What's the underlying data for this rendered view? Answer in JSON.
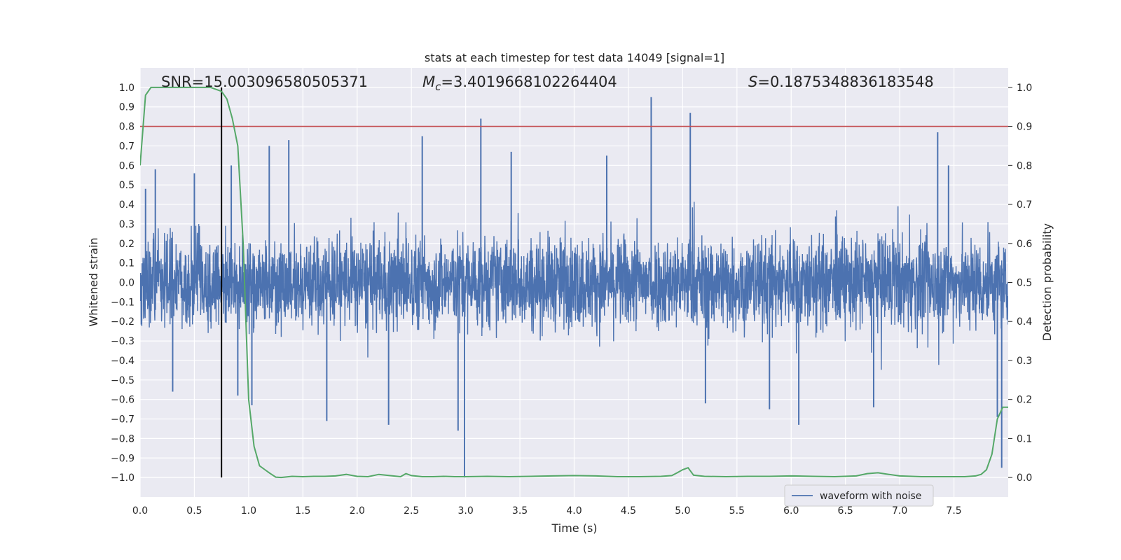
{
  "chart_data": {
    "type": "line",
    "title": "stats at each timestep for test data 14049 [signal=1]",
    "xlabel": "Time (s)",
    "ylabel": "Whitened strain",
    "y2label": "Detection probability",
    "xlim": [
      0.0,
      8.0
    ],
    "ylim": [
      -1.1,
      1.1
    ],
    "y2lim": [
      -0.05,
      1.05
    ],
    "xticks": [
      "0.0",
      "0.5",
      "1.0",
      "1.5",
      "2.0",
      "2.5",
      "3.0",
      "3.5",
      "4.0",
      "4.5",
      "5.0",
      "5.5",
      "6.0",
      "6.5",
      "7.0",
      "7.5"
    ],
    "yticks": [
      "1.0",
      "0.9",
      "0.8",
      "0.7",
      "0.6",
      "0.5",
      "0.4",
      "0.3",
      "0.2",
      "0.1",
      "0.0",
      "−0.1",
      "−0.2",
      "−0.3",
      "−0.4",
      "−0.5",
      "−0.6",
      "−0.7",
      "−0.8",
      "−0.9",
      "−1.0"
    ],
    "y2ticks": [
      "1.0",
      "0.9",
      "0.8",
      "0.7",
      "0.6",
      "0.5",
      "0.4",
      "0.3",
      "0.2",
      "0.1",
      "0.0"
    ],
    "grid": true,
    "legend_position": "lower-right",
    "annotations": {
      "snr": "SNR=15.003096580505371",
      "mc_symbol": "M",
      "mc_sub": "c",
      "mc_value": "=3.4019668102264404",
      "s_symbol": "S",
      "s_value": "=0.1875348836183548"
    },
    "series": [
      {
        "name": "waveform with noise",
        "axis": "left",
        "color": "#4c72b0",
        "envelope_typical": 0.33,
        "noise_seed": 14049,
        "spikes": [
          {
            "x": 0.05,
            "y": 0.48
          },
          {
            "x": 0.14,
            "y": 0.58
          },
          {
            "x": 0.3,
            "y": -0.56
          },
          {
            "x": 0.5,
            "y": 0.56
          },
          {
            "x": 0.84,
            "y": 0.6
          },
          {
            "x": 0.9,
            "y": -0.58
          },
          {
            "x": 1.03,
            "y": -0.63
          },
          {
            "x": 1.19,
            "y": 0.7
          },
          {
            "x": 1.37,
            "y": 0.73
          },
          {
            "x": 1.72,
            "y": -0.71
          },
          {
            "x": 2.29,
            "y": -0.73
          },
          {
            "x": 2.6,
            "y": 0.75
          },
          {
            "x": 2.93,
            "y": -0.76
          },
          {
            "x": 2.99,
            "y": -1.0
          },
          {
            "x": 3.14,
            "y": 0.84
          },
          {
            "x": 3.42,
            "y": 0.67
          },
          {
            "x": 4.3,
            "y": 0.65
          },
          {
            "x": 4.71,
            "y": 0.95
          },
          {
            "x": 5.07,
            "y": 0.87
          },
          {
            "x": 5.21,
            "y": -0.62
          },
          {
            "x": 5.8,
            "y": -0.65
          },
          {
            "x": 6.07,
            "y": -0.73
          },
          {
            "x": 6.76,
            "y": -0.64
          },
          {
            "x": 7.35,
            "y": 0.77
          },
          {
            "x": 7.45,
            "y": 0.6
          },
          {
            "x": 7.9,
            "y": -0.69
          },
          {
            "x": 7.94,
            "y": -0.95
          }
        ]
      },
      {
        "name": "",
        "axis": "right",
        "color": "#55a868",
        "x": [
          0.0,
          0.05,
          0.1,
          0.2,
          0.3,
          0.4,
          0.5,
          0.6,
          0.65,
          0.7,
          0.75,
          0.8,
          0.85,
          0.9,
          0.95,
          1.0,
          1.05,
          1.1,
          1.15,
          1.2,
          1.25,
          1.3,
          1.4,
          1.5,
          1.6,
          1.7,
          1.8,
          1.9,
          2.0,
          2.1,
          2.2,
          2.3,
          2.4,
          2.45,
          2.5,
          2.6,
          2.7,
          2.8,
          2.9,
          3.0,
          3.2,
          3.4,
          3.6,
          3.8,
          4.0,
          4.2,
          4.4,
          4.6,
          4.8,
          4.9,
          4.95,
          5.0,
          5.05,
          5.1,
          5.2,
          5.4,
          5.6,
          5.8,
          6.0,
          6.2,
          6.4,
          6.6,
          6.7,
          6.8,
          6.9,
          7.0,
          7.2,
          7.4,
          7.6,
          7.7,
          7.75,
          7.8,
          7.85,
          7.9,
          7.95,
          8.0
        ],
        "y": [
          0.8,
          0.98,
          1.0,
          1.0,
          1.0,
          1.0,
          1.0,
          1.0,
          1.0,
          0.995,
          0.99,
          0.97,
          0.92,
          0.85,
          0.6,
          0.2,
          0.08,
          0.03,
          0.02,
          0.01,
          0.001,
          0.0,
          0.003,
          0.002,
          0.003,
          0.003,
          0.004,
          0.008,
          0.003,
          0.002,
          0.008,
          0.005,
          0.002,
          0.01,
          0.005,
          0.002,
          0.002,
          0.003,
          0.002,
          0.002,
          0.003,
          0.002,
          0.003,
          0.004,
          0.005,
          0.004,
          0.002,
          0.002,
          0.003,
          0.005,
          0.012,
          0.02,
          0.025,
          0.006,
          0.003,
          0.002,
          0.003,
          0.003,
          0.004,
          0.003,
          0.002,
          0.004,
          0.01,
          0.012,
          0.008,
          0.004,
          0.002,
          0.002,
          0.002,
          0.004,
          0.008,
          0.02,
          0.06,
          0.15,
          0.18,
          0.18
        ]
      }
    ],
    "reference_lines": [
      {
        "orientation": "horizontal",
        "axis": "right",
        "value": 0.9,
        "color": "#c44e52"
      },
      {
        "orientation": "vertical",
        "axis": "left",
        "value": 0.75,
        "ymin": -1.0,
        "ymax": 1.0,
        "color": "#000000"
      }
    ]
  }
}
